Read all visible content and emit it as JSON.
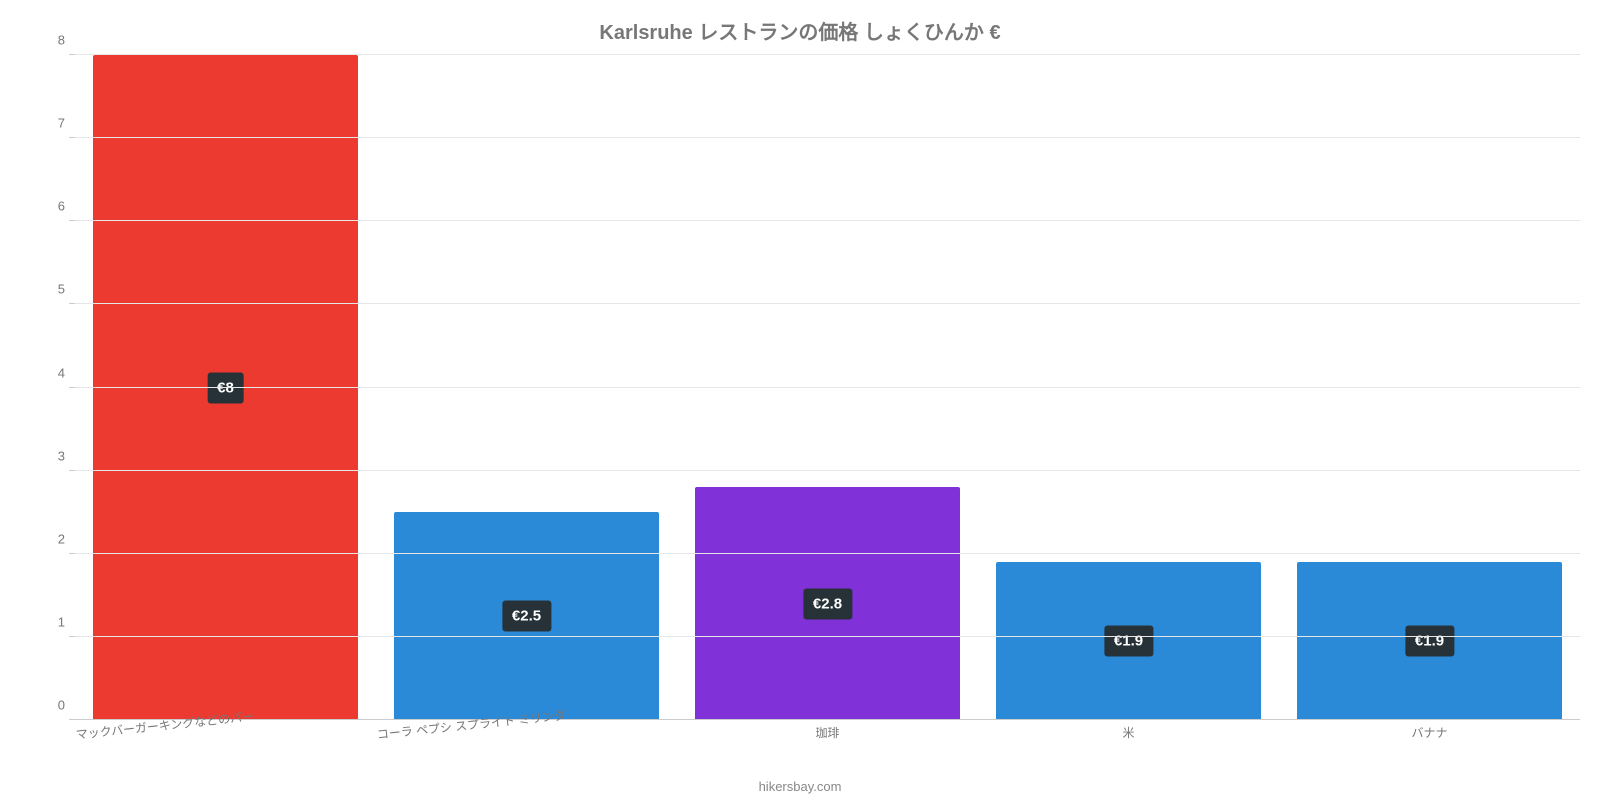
{
  "chart": {
    "type": "bar",
    "title": "Karlsruhe レストランの価格 しょくひんか €",
    "title_fontsize": 20,
    "title_color": "#777777",
    "background_color": "#ffffff",
    "grid_color": "#e6e6e6",
    "baseline_color": "#cccccc",
    "tick_label_color": "#777777",
    "tick_fontsize": 13,
    "xlabel_fontsize": 12,
    "xlabel_rotate_deg": -6,
    "y": {
      "min": 0,
      "max": 8,
      "step": 1
    },
    "bar_width_pct": 88,
    "badge_bg": "#263238",
    "badge_fontsize": 15,
    "categories": [
      {
        "label": "マックバーガーキングなどのバー",
        "value": 8.0,
        "display": "€8",
        "color": "#ec3a30",
        "label_align": "left"
      },
      {
        "label": "コーラ ペプシ スプライト ミリンダ",
        "value": 2.5,
        "display": "€2.5",
        "color": "#2a8ad8",
        "label_align": "left"
      },
      {
        "label": "珈琲",
        "value": 2.8,
        "display": "€2.8",
        "color": "#8131d8",
        "label_align": "center"
      },
      {
        "label": "米",
        "value": 1.9,
        "display": "€1.9",
        "color": "#2a8ad8",
        "label_align": "center"
      },
      {
        "label": "バナナ",
        "value": 1.9,
        "display": "€1.9",
        "color": "#2a8ad8",
        "label_align": "center"
      }
    ],
    "attribution": "hikersbay.com"
  }
}
